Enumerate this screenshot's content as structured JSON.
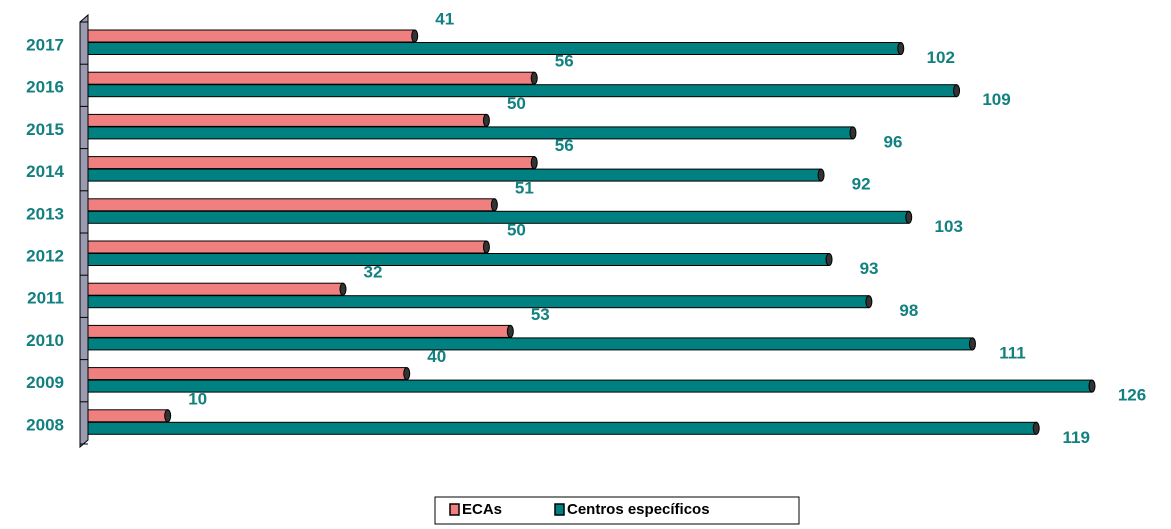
{
  "chart_data": {
    "type": "bar",
    "orientation": "horizontal",
    "categories": [
      "2017",
      "2016",
      "2015",
      "2014",
      "2013",
      "2012",
      "2011",
      "2010",
      "2009",
      "2008"
    ],
    "series": [
      {
        "name": "ECAs",
        "color": "#f08080",
        "values": [
          41,
          56,
          50,
          56,
          51,
          50,
          32,
          53,
          40,
          10
        ]
      },
      {
        "name": "Centros específicos",
        "color": "#008080",
        "values": [
          102,
          109,
          96,
          92,
          103,
          93,
          98,
          111,
          126,
          119
        ]
      }
    ],
    "legend": "bottom"
  }
}
